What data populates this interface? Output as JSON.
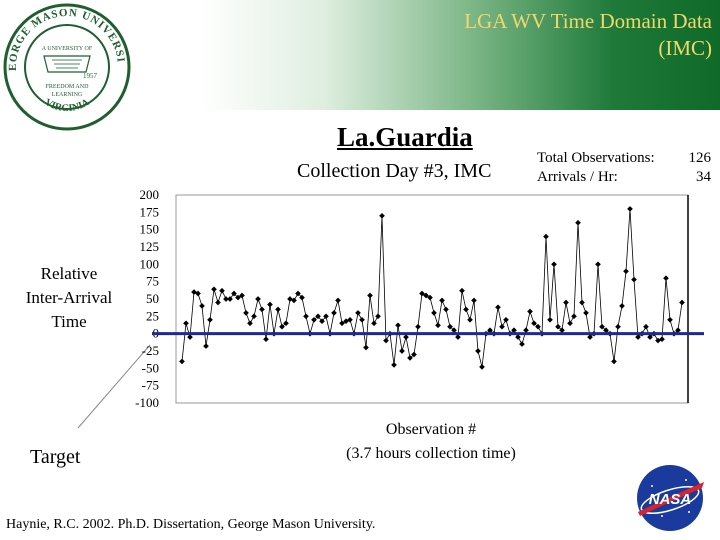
{
  "banner": {
    "title_line1": "LGA WV Time Domain Data",
    "title_line2": "(IMC)"
  },
  "seal": {
    "ring_text_top": "GEORGE MASON UNIVERSITY",
    "ring_text_bottom": "VIRGINIA",
    "inner_text": "A UNIVERSITY OF",
    "year": "1957",
    "motto1": "FREEDOM AND",
    "motto2": "LEARNING"
  },
  "title": "La.Guardia",
  "subtitle": "Collection Day #3, IMC",
  "stats": {
    "total_label": "Total Observations:",
    "total_value": "126",
    "arrivals_label": "Arrivals / Hr:",
    "arrivals_value": "34"
  },
  "ylabel_lines": [
    "Relative",
    "Inter-Arrival",
    "Time"
  ],
  "target_label": "Target",
  "xlabel_lines": [
    "Observation #",
    "(3.7 hours collection time)"
  ],
  "citation": "Haynie, R.C. 2002. Ph.D. Dissertation, George Mason University.",
  "nasa_logo_text": "NASA",
  "colors": {
    "target_line": "#1a2a9a",
    "banner_text": "#f2d76b",
    "banner_green": "#1f7a3a"
  },
  "chart_data": {
    "type": "line",
    "title": "",
    "xlabel": "Observation #",
    "ylabel": "Relative Inter-Arrival Time",
    "ylim": [
      -100,
      200
    ],
    "yticks": [
      "200",
      "175",
      "150",
      "125",
      "100",
      "75",
      "50",
      "25",
      "0",
      "-25",
      "-50",
      "-75",
      "-100"
    ],
    "target": 0,
    "grid": false,
    "series": [
      {
        "values": [
          -40,
          15,
          -5,
          60,
          58,
          40,
          -18,
          20,
          64,
          45,
          62,
          50,
          50,
          58,
          52,
          55,
          30,
          15,
          25,
          50,
          35,
          -8,
          42,
          0,
          35,
          10,
          15,
          50,
          48,
          58,
          52,
          25,
          0,
          20,
          25,
          18,
          25,
          0,
          30,
          48,
          15,
          18,
          20,
          0,
          30,
          20,
          -20,
          55,
          15,
          25,
          170,
          -10,
          0,
          -45,
          12,
          -25,
          -5,
          -35,
          -30,
          10,
          58,
          55,
          52,
          30,
          12,
          48,
          35,
          10,
          5,
          -5,
          62,
          35,
          20,
          48,
          -25,
          -48,
          0,
          5,
          0,
          38,
          10,
          20,
          0,
          5,
          -5,
          -15,
          5,
          32,
          15,
          10,
          0,
          140,
          20,
          100,
          10,
          5,
          45,
          15,
          25,
          160,
          45,
          30,
          -5,
          0,
          100,
          10,
          5,
          0,
          -40,
          10,
          40,
          90,
          180,
          78,
          -5,
          0,
          10,
          -5,
          0,
          -10,
          -8,
          80,
          20,
          0,
          5,
          45
        ]
      }
    ]
  }
}
